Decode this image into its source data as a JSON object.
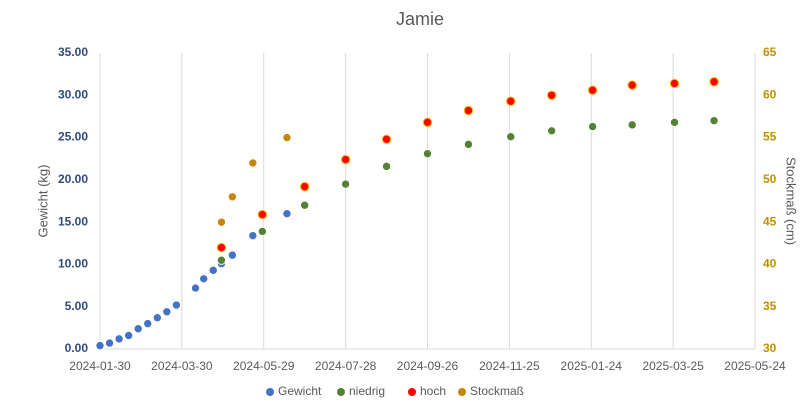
{
  "chart_data": {
    "type": "scatter",
    "title": "Jamie",
    "y_label": "Gewicht (kg)",
    "y2_label": "Stockmaß (cm)",
    "xlim": [
      "2024-01-30",
      "2025-05-24"
    ],
    "xticks": [
      "2024-01-30",
      "2024-03-30",
      "2024-05-29",
      "2024-07-28",
      "2024-09-26",
      "2024-11-25",
      "2025-01-24",
      "2025-03-25",
      "2025-05-24"
    ],
    "ylim": [
      0,
      35
    ],
    "yticks": [
      {
        "value": 0,
        "label": "0.00"
      },
      {
        "value": 5,
        "label": "5.00"
      },
      {
        "value": 10,
        "label": "10.00"
      },
      {
        "value": 15,
        "label": "15.00"
      },
      {
        "value": 20,
        "label": "20.00"
      },
      {
        "value": 25,
        "label": "25.00"
      },
      {
        "value": 30,
        "label": "30.00"
      },
      {
        "value": 35,
        "label": "35.00"
      }
    ],
    "y2lim": [
      30,
      65
    ],
    "y2ticks": [
      30,
      35,
      40,
      45,
      50,
      55,
      60,
      65
    ],
    "grid": "x",
    "legend": "bottom",
    "series": [
      {
        "name": "Gewicht",
        "color": "#4472c4",
        "x": [
          "2024-01-30",
          "2024-02-06",
          "2024-02-13",
          "2024-02-20",
          "2024-02-27",
          "2024-03-05",
          "2024-03-12",
          "2024-03-19",
          "2024-03-26",
          "2024-04-09",
          "2024-04-15",
          "2024-04-22",
          "2024-04-28",
          "2024-05-06",
          "2024-05-21",
          "2024-06-15"
        ],
        "values": [
          0.4,
          0.7,
          1.2,
          1.6,
          2.4,
          3.0,
          3.7,
          4.4,
          5.2,
          7.2,
          8.3,
          9.3,
          10.1,
          11.1,
          13.4,
          16.0
        ]
      },
      {
        "name": "niedrig",
        "color": "#548235",
        "x": [
          "2024-04-28",
          "2024-05-28",
          "2024-06-28",
          "2024-07-28",
          "2024-08-27",
          "2024-09-26",
          "2024-10-26",
          "2024-11-26",
          "2024-12-26",
          "2025-01-25",
          "2025-02-23",
          "2025-03-26",
          "2025-04-24"
        ],
        "values": [
          10.5,
          13.9,
          17.0,
          19.5,
          21.6,
          23.1,
          24.2,
          25.1,
          25.8,
          26.3,
          26.5,
          26.8,
          27.0
        ]
      },
      {
        "name": "hoch",
        "color": "#ff0000",
        "x": [
          "2024-04-28",
          "2024-05-28",
          "2024-06-28",
          "2024-07-28",
          "2024-08-27",
          "2024-09-26",
          "2024-10-26",
          "2024-11-26",
          "2024-12-26",
          "2025-01-25",
          "2025-02-23",
          "2025-03-26",
          "2025-04-24"
        ],
        "values": [
          12.0,
          15.9,
          19.2,
          22.4,
          24.8,
          26.8,
          28.2,
          29.3,
          30.0,
          30.6,
          31.2,
          31.4,
          31.6
        ]
      },
      {
        "name": "Stockmaß",
        "color": "#c9850a",
        "axis": "y2",
        "x": [
          "2024-04-28",
          "2024-05-06",
          "2024-05-21",
          "2024-06-15"
        ],
        "values": [
          45,
          48,
          52,
          55
        ]
      }
    ]
  }
}
